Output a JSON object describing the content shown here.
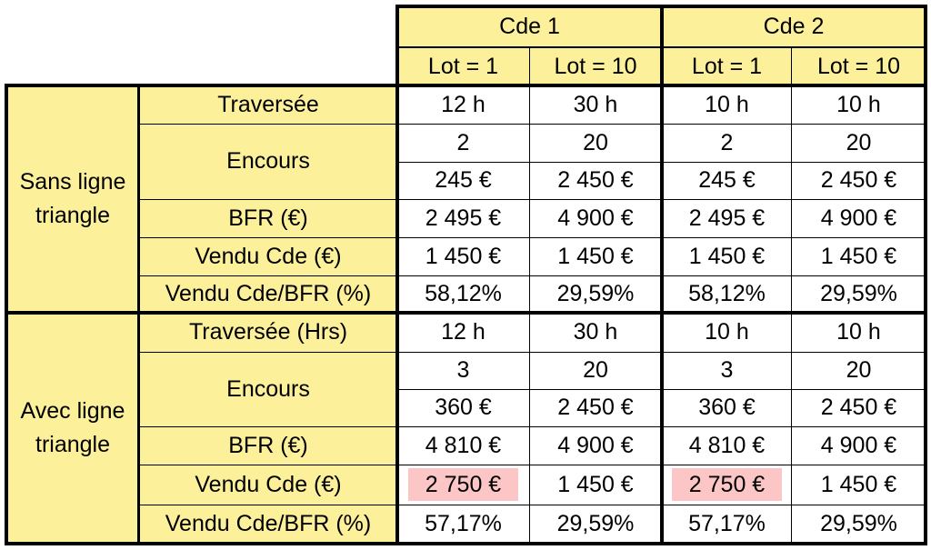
{
  "header": {
    "groups": [
      "Cde 1",
      "Cde 2"
    ],
    "subheaders": [
      "Lot = 1",
      "Lot = 10",
      "Lot = 1",
      "Lot = 10"
    ]
  },
  "sections": [
    {
      "label": "Sans ligne triangle",
      "rows": [
        {
          "label": "Traversée",
          "values": [
            "12 h",
            "30 h",
            "10 h",
            "10 h"
          ]
        },
        {
          "label": "Encours",
          "values": [
            "2",
            "20",
            "2",
            "20"
          ]
        },
        {
          "label": "",
          "values": [
            "245 €",
            "2 450 €",
            "245 €",
            "2 450 €"
          ]
        },
        {
          "label": "BFR (€)",
          "values": [
            "2 495 €",
            "4 900 €",
            "2 495 €",
            "4 900 €"
          ]
        },
        {
          "label": "Vendu Cde (€)",
          "values": [
            "1 450 €",
            "1 450 €",
            "1 450 €",
            "1 450 €"
          ]
        },
        {
          "label": "Vendu Cde/BFR (%)",
          "values": [
            "58,12%",
            "29,59%",
            "58,12%",
            "29,59%"
          ]
        }
      ]
    },
    {
      "label": "Avec ligne triangle",
      "rows": [
        {
          "label": "Traversée (Hrs)",
          "values": [
            "12 h",
            "30 h",
            "10 h",
            "10 h"
          ]
        },
        {
          "label": "Encours",
          "values": [
            "3",
            "20",
            "3",
            "20"
          ]
        },
        {
          "label": "",
          "values": [
            "360 €",
            "2 450 €",
            "360 €",
            "2 450 €"
          ]
        },
        {
          "label": "BFR (€)",
          "values": [
            "4 810 €",
            "4 900 €",
            "4 810 €",
            "4 900 €"
          ]
        },
        {
          "label": "Vendu Cde (€)",
          "values": [
            "2 750 €",
            "1 450 €",
            "2 750 €",
            "1 450 €"
          ]
        },
        {
          "label": "Vendu Cde/BFR (%)",
          "values": [
            "57,17%",
            "29,59%",
            "57,17%",
            "29,59%"
          ]
        }
      ]
    }
  ],
  "colors": {
    "header_fill": "#fdf09a",
    "highlight_fill": "#fcc6c6",
    "border": "#000000"
  }
}
